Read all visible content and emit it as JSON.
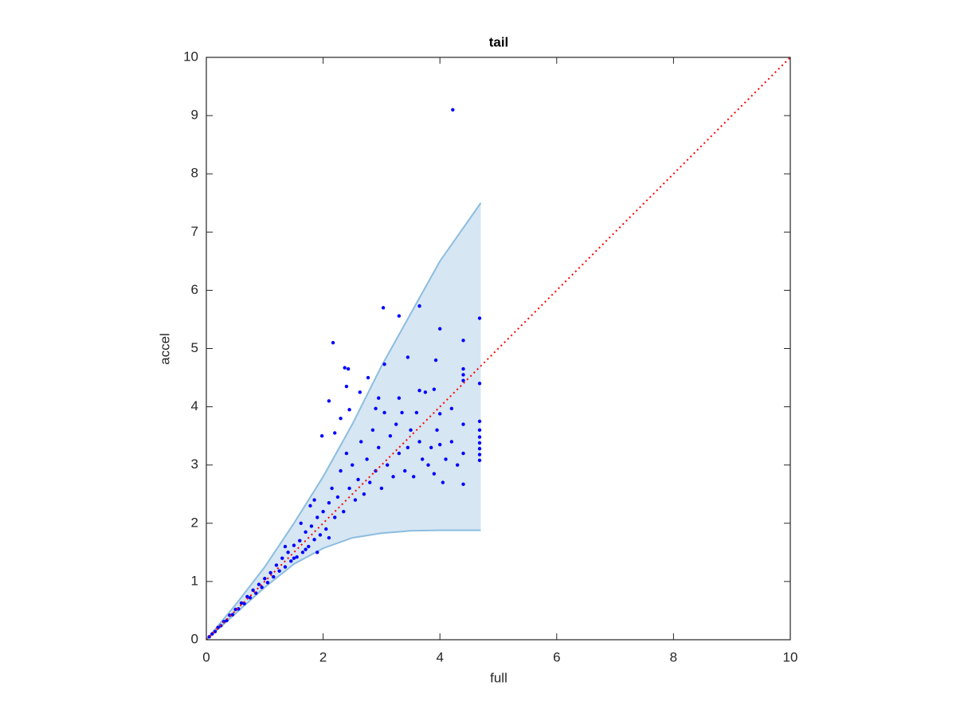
{
  "chart_data": {
    "type": "scatter",
    "title": "tail",
    "xlabel": "full",
    "ylabel": "accel",
    "xlim": [
      0,
      10
    ],
    "ylim": [
      0,
      10
    ],
    "xticks": [
      0,
      2,
      4,
      6,
      8,
      10
    ],
    "yticks": [
      0,
      1,
      2,
      3,
      4,
      5,
      6,
      7,
      8,
      9,
      10
    ],
    "grid": false,
    "color": "#0000ff",
    "x": [
      0.05,
      0.1,
      0.15,
      0.2,
      0.25,
      0.3,
      0.35,
      0.4,
      0.45,
      0.5,
      0.55,
      0.6,
      0.65,
      0.7,
      0.75,
      0.8,
      0.85,
      0.9,
      0.95,
      1.0,
      1.05,
      1.1,
      1.15,
      1.2,
      1.25,
      1.3,
      1.35,
      1.4,
      1.45,
      1.5,
      1.55,
      1.6,
      1.65,
      1.7,
      1.75,
      1.8,
      1.85,
      1.9,
      1.95,
      2.0,
      1.62,
      1.78,
      1.85,
      2.05,
      2.1,
      2.15,
      2.2,
      2.25,
      2.3,
      2.35,
      2.4,
      2.45,
      2.5,
      2.55,
      2.6,
      2.65,
      2.7,
      2.75,
      2.8,
      2.85,
      2.9,
      2.95,
      3.0,
      3.05,
      3.1,
      3.15,
      3.2,
      3.25,
      3.3,
      3.35,
      3.4,
      3.45,
      3.5,
      3.55,
      3.6,
      3.65,
      3.7,
      3.75,
      3.8,
      3.85,
      3.9,
      3.95,
      4.0,
      4.05,
      4.1,
      4.2,
      4.3,
      4.4,
      4.4,
      4.4,
      4.4,
      4.4,
      4.4,
      4.4,
      4.68,
      4.68,
      4.68,
      4.68,
      4.68,
      4.68,
      4.68,
      4.68,
      4.68,
      4.22,
      3.03,
      3.65,
      3.3,
      2.17,
      2.37,
      2.43,
      4.0,
      3.93,
      3.45,
      3.05,
      2.77,
      2.63,
      2.95,
      2.1,
      2.4,
      2.45,
      2.3,
      2.2,
      1.98,
      3.9,
      3.65,
      3.3,
      2.9,
      4.0,
      4.2,
      1.35,
      1.5,
      1.7,
      2.1,
      1.9
    ],
    "y": [
      0.05,
      0.1,
      0.14,
      0.21,
      0.24,
      0.31,
      0.33,
      0.42,
      0.43,
      0.52,
      0.53,
      0.63,
      0.62,
      0.74,
      0.72,
      0.85,
      0.8,
      0.95,
      0.9,
      1.05,
      0.98,
      1.15,
      1.08,
      1.28,
      1.18,
      1.4,
      1.25,
      1.5,
      1.35,
      1.62,
      1.42,
      1.7,
      1.5,
      1.85,
      1.6,
      1.95,
      1.72,
      2.1,
      1.8,
      2.2,
      2.0,
      2.3,
      2.4,
      1.9,
      2.35,
      2.6,
      2.1,
      2.45,
      2.9,
      2.2,
      3.2,
      2.6,
      3.0,
      2.4,
      2.75,
      3.4,
      2.5,
      3.1,
      2.7,
      3.6,
      2.9,
      3.3,
      2.6,
      3.9,
      3.0,
      3.5,
      2.8,
      3.7,
      3.2,
      3.9,
      2.9,
      3.3,
      3.6,
      2.8,
      3.9,
      3.4,
      3.1,
      4.25,
      3.0,
      3.3,
      2.85,
      3.6,
      3.35,
      2.7,
      3.1,
      3.4,
      3.0,
      2.67,
      3.2,
      3.7,
      4.45,
      4.55,
      4.65,
      5.14,
      3.08,
      3.18,
      3.28,
      3.38,
      3.48,
      3.6,
      3.75,
      4.4,
      5.52,
      9.1,
      5.7,
      5.73,
      5.56,
      5.1,
      4.67,
      4.65,
      5.34,
      4.8,
      4.85,
      4.73,
      4.5,
      4.25,
      4.15,
      4.1,
      4.35,
      3.95,
      3.8,
      3.55,
      3.5,
      4.3,
      4.28,
      4.15,
      3.97,
      3.88,
      3.97,
      1.6,
      1.4,
      1.55,
      1.75,
      1.5
    ],
    "band": {
      "color": "#d6e6f3",
      "edge_color": "#8cbde0",
      "x": [
        0,
        0.5,
        1,
        1.5,
        2,
        2.5,
        3,
        3.5,
        4,
        4.7
      ],
      "upper": [
        0,
        0.6,
        1.25,
        2.0,
        2.8,
        3.7,
        4.7,
        5.6,
        6.5,
        7.5
      ],
      "lower": [
        0,
        0.45,
        0.9,
        1.3,
        1.57,
        1.75,
        1.83,
        1.87,
        1.88,
        1.88
      ]
    },
    "reference_line": {
      "color": "#ff0000",
      "x": [
        0,
        10
      ],
      "y": [
        0,
        10
      ]
    }
  }
}
